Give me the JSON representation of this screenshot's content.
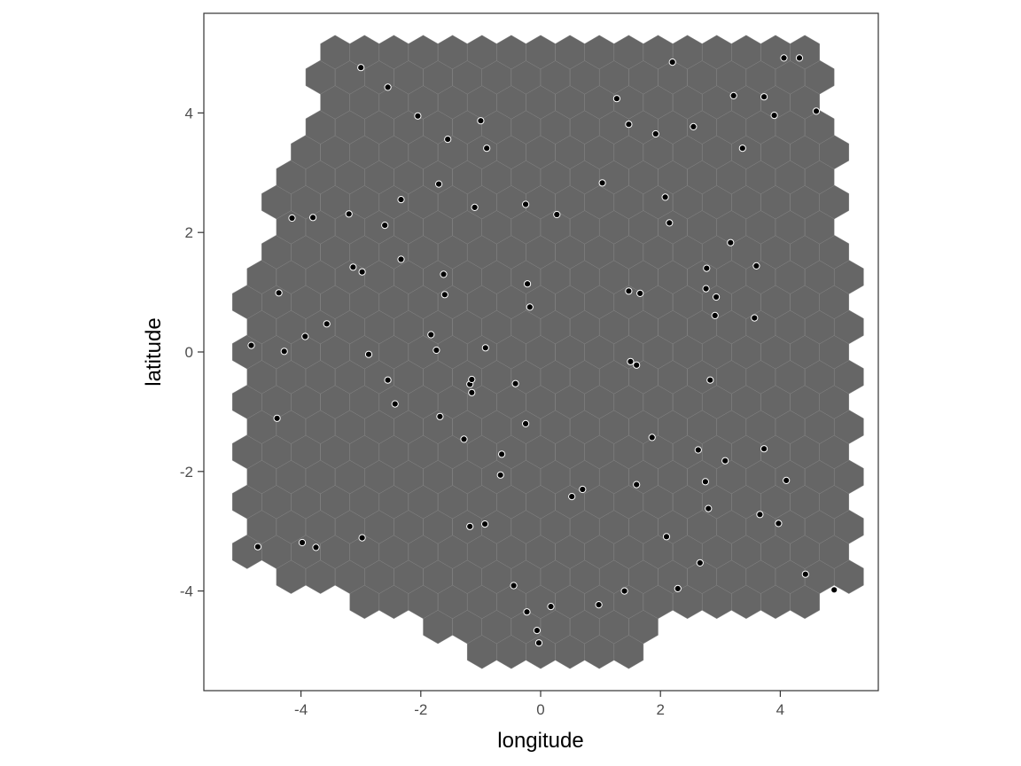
{
  "chart_data": {
    "type": "hexgrid-scatter",
    "xlabel": "longitude",
    "ylabel": "latitude",
    "xlim": [
      -5.6,
      5.6
    ],
    "ylim": [
      -5.6,
      5.6
    ],
    "xticks": [
      -4,
      -2,
      0,
      2,
      4
    ],
    "yticks": [
      -4,
      -2,
      0,
      2,
      4
    ],
    "xtick_labels": [
      "-4",
      "-2",
      "0",
      "2",
      "4"
    ],
    "ytick_labels": [
      "-4",
      "-2",
      "0",
      "2",
      "4"
    ],
    "grid": false,
    "hex": {
      "fill": "#666666",
      "stroke": "#888888",
      "circumradius": 0.283,
      "spacing_x": 0.49,
      "spacing_y": 0.418,
      "boundary": [
        [
          -3.6,
          5.1
        ],
        [
          4.45,
          5.1
        ],
        [
          4.9,
          4.05
        ],
        [
          5.15,
          2.0
        ],
        [
          5.15,
          -3.9
        ],
        [
          4.7,
          -4.35
        ],
        [
          1.95,
          -4.45
        ],
        [
          1.65,
          -5.25
        ],
        [
          -0.65,
          -5.25
        ],
        [
          -1.85,
          -4.55
        ],
        [
          -3.3,
          -4.1
        ],
        [
          -4.05,
          -3.85
        ],
        [
          -5.05,
          -3.5
        ],
        [
          -5.05,
          0.45
        ],
        [
          -4.6,
          2.2
        ],
        [
          -4.1,
          3.4
        ],
        [
          -3.8,
          4.35
        ]
      ]
    },
    "point_color": "#000000",
    "points": [
      [
        -3.0,
        4.76
      ],
      [
        -2.55,
        4.43
      ],
      [
        -2.05,
        3.95
      ],
      [
        -1.55,
        3.56
      ],
      [
        -1.0,
        3.87
      ],
      [
        -0.9,
        3.41
      ],
      [
        1.27,
        4.24
      ],
      [
        1.47,
        3.81
      ],
      [
        1.92,
        3.65
      ],
      [
        2.2,
        4.85
      ],
      [
        2.55,
        3.77
      ],
      [
        3.22,
        4.29
      ],
      [
        3.73,
        4.27
      ],
      [
        3.9,
        3.96
      ],
      [
        4.06,
        4.92
      ],
      [
        4.32,
        4.92
      ],
      [
        4.6,
        4.03
      ],
      [
        3.37,
        3.41
      ],
      [
        -4.15,
        2.24
      ],
      [
        -3.8,
        2.25
      ],
      [
        -3.2,
        2.31
      ],
      [
        -2.6,
        2.12
      ],
      [
        -2.33,
        2.55
      ],
      [
        -1.7,
        2.81
      ],
      [
        -1.1,
        2.42
      ],
      [
        -0.25,
        2.47
      ],
      [
        0.27,
        2.3
      ],
      [
        1.03,
        2.83
      ],
      [
        2.08,
        2.59
      ],
      [
        2.15,
        2.16
      ],
      [
        3.17,
        1.83
      ],
      [
        -4.37,
        0.99
      ],
      [
        -3.13,
        1.42
      ],
      [
        -2.98,
        1.34
      ],
      [
        -2.33,
        1.55
      ],
      [
        -1.62,
        1.3
      ],
      [
        -1.6,
        0.96
      ],
      [
        -0.22,
        1.14
      ],
      [
        -0.18,
        0.75
      ],
      [
        1.47,
        1.02
      ],
      [
        1.66,
        0.98
      ],
      [
        2.77,
        1.4
      ],
      [
        2.76,
        1.06
      ],
      [
        2.93,
        0.92
      ],
      [
        3.6,
        1.44
      ],
      [
        2.91,
        0.61
      ],
      [
        3.57,
        0.57
      ],
      [
        -4.83,
        0.11
      ],
      [
        -4.28,
        0.01
      ],
      [
        -3.93,
        0.26
      ],
      [
        -3.57,
        0.47
      ],
      [
        -2.87,
        -0.04
      ],
      [
        -1.83,
        0.29
      ],
      [
        -1.74,
        0.03
      ],
      [
        -0.92,
        0.07
      ],
      [
        -2.55,
        -0.47
      ],
      [
        -1.18,
        -0.54
      ],
      [
        -1.15,
        -0.46
      ],
      [
        -1.15,
        -0.68
      ],
      [
        -0.42,
        -0.53
      ],
      [
        1.5,
        -0.16
      ],
      [
        1.6,
        -0.22
      ],
      [
        2.83,
        -0.47
      ],
      [
        -4.4,
        -1.11
      ],
      [
        -2.43,
        -0.87
      ],
      [
        -1.68,
        -1.08
      ],
      [
        -0.25,
        -1.2
      ],
      [
        -1.28,
        -1.46
      ],
      [
        -0.65,
        -1.71
      ],
      [
        -0.67,
        -2.06
      ],
      [
        1.86,
        -1.43
      ],
      [
        2.63,
        -1.64
      ],
      [
        3.08,
        -1.82
      ],
      [
        3.73,
        -1.62
      ],
      [
        1.6,
        -2.22
      ],
      [
        2.75,
        -2.17
      ],
      [
        4.1,
        -2.15
      ],
      [
        0.52,
        -2.42
      ],
      [
        0.7,
        -2.3
      ],
      [
        2.8,
        -2.62
      ],
      [
        3.66,
        -2.72
      ],
      [
        3.97,
        -2.87
      ],
      [
        -4.72,
        -3.26
      ],
      [
        -3.98,
        -3.19
      ],
      [
        -3.75,
        -3.27
      ],
      [
        -2.98,
        -3.11
      ],
      [
        -1.18,
        -2.92
      ],
      [
        -0.93,
        -2.88
      ],
      [
        2.1,
        -3.09
      ],
      [
        2.66,
        -3.53
      ],
      [
        -0.45,
        -3.91
      ],
      [
        -0.23,
        -4.35
      ],
      [
        0.17,
        -4.26
      ],
      [
        -0.06,
        -4.66
      ],
      [
        -0.03,
        -4.87
      ],
      [
        0.97,
        -4.23
      ],
      [
        1.4,
        -4.0
      ],
      [
        2.29,
        -3.96
      ],
      [
        4.42,
        -3.72
      ],
      [
        4.9,
        -3.98
      ]
    ]
  }
}
